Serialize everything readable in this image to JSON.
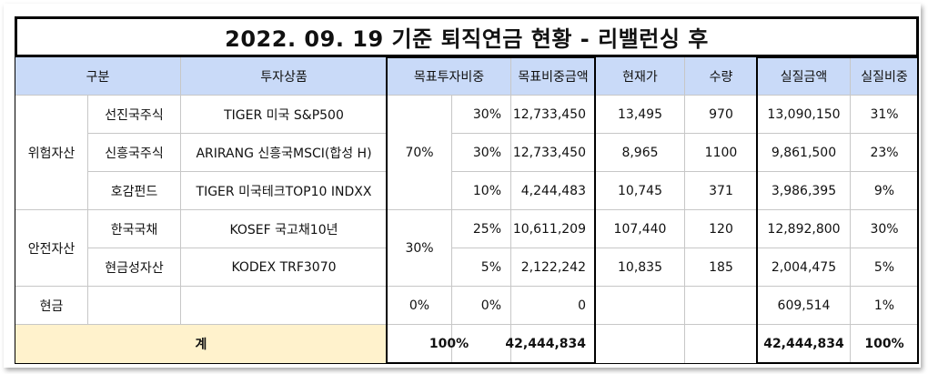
{
  "title": "2022. 09. 19 기준 퇴직연금 현황 - 리밸런싱 후",
  "headers": {
    "category": "구분",
    "product": "투자상품",
    "target_weight": "목표투자비중",
    "target_amount": "목표비중금액",
    "price": "현재가",
    "qty": "수량",
    "actual_amount": "실질금액",
    "actual_weight": "실질비중"
  },
  "groups": {
    "risk": "위험자산",
    "safe": "안전자산",
    "cash": "현금"
  },
  "group_targets": {
    "risk": "70%",
    "safe": "30%",
    "cash": "0%"
  },
  "rows": [
    {
      "sub": "선진국주식",
      "product": "TIGER 미국 S&P500",
      "weight": "30%",
      "target_amount": "12,733,450",
      "price": "13,495",
      "qty": "970",
      "actual_amount": "13,090,150",
      "actual_weight": "31%"
    },
    {
      "sub": "신흥국주식",
      "product": "ARIRANG 신흥국MSCI(합성 H)",
      "weight": "30%",
      "target_amount": "12,733,450",
      "price": "8,965",
      "qty": "1100",
      "actual_amount": "9,861,500",
      "actual_weight": "23%"
    },
    {
      "sub": "호감펀드",
      "product": "TIGER 미국테크TOP10 INDXX",
      "weight": "10%",
      "target_amount": "4,244,483",
      "price": "10,745",
      "qty": "371",
      "actual_amount": "3,986,395",
      "actual_weight": "9%"
    },
    {
      "sub": "한국국채",
      "product": "KOSEF 국고채10년",
      "weight": "25%",
      "target_amount": "10,611,209",
      "price": "107,440",
      "qty": "120",
      "actual_amount": "12,892,800",
      "actual_weight": "30%"
    },
    {
      "sub": "현금성자산",
      "product": "KODEX TRF3070",
      "weight": "5%",
      "target_amount": "2,122,242",
      "price": "10,835",
      "qty": "185",
      "actual_amount": "2,004,475",
      "actual_weight": "5%"
    },
    {
      "sub": "",
      "product": "",
      "weight": "0%",
      "target_amount": "0",
      "price": "",
      "qty": "",
      "actual_amount": "609,514",
      "actual_weight": "1%"
    }
  ],
  "total": {
    "label": "계",
    "weight": "100%",
    "target_amount": "42,444,834",
    "actual_amount": "42,444,834",
    "actual_weight": "100%"
  }
}
